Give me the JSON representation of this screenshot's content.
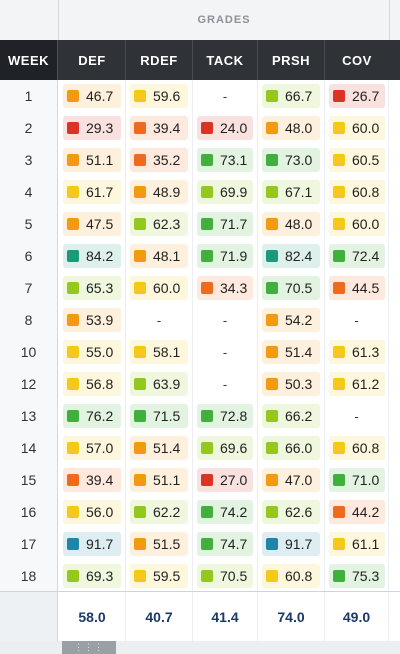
{
  "header": {
    "group_label": "GRADES"
  },
  "columns": {
    "week": "WEEK",
    "def": "DEF",
    "rdef": "RDEF",
    "tack": "TACK",
    "prsh": "PRSH",
    "cov": "COV"
  },
  "colors": {
    "elite_teal": "#1a9a78",
    "elite_blue": "#1e86a8",
    "high_green": "#3fb03b",
    "good_lime": "#94c81f",
    "avg_yellow": "#f4c919",
    "below_orange": "#f39a12",
    "low_orange": "#ef6a1d",
    "poor_red": "#d93425"
  },
  "rows": [
    {
      "week": "1",
      "cells": [
        [
          "46.7",
          "below_orange"
        ],
        [
          "59.6",
          "avg_yellow"
        ],
        [
          "-",
          ""
        ],
        [
          "66.7",
          "good_lime"
        ],
        [
          "26.7",
          "poor_red"
        ]
      ]
    },
    {
      "week": "2",
      "cells": [
        [
          "29.3",
          "poor_red"
        ],
        [
          "39.4",
          "low_orange"
        ],
        [
          "24.0",
          "poor_red"
        ],
        [
          "48.0",
          "below_orange"
        ],
        [
          "60.0",
          "avg_yellow"
        ]
      ]
    },
    {
      "week": "3",
      "cells": [
        [
          "51.1",
          "below_orange"
        ],
        [
          "35.2",
          "low_orange"
        ],
        [
          "73.1",
          "high_green"
        ],
        [
          "73.0",
          "high_green"
        ],
        [
          "60.5",
          "avg_yellow"
        ]
      ]
    },
    {
      "week": "4",
      "cells": [
        [
          "61.7",
          "avg_yellow"
        ],
        [
          "48.9",
          "below_orange"
        ],
        [
          "69.9",
          "good_lime"
        ],
        [
          "67.1",
          "good_lime"
        ],
        [
          "60.8",
          "avg_yellow"
        ]
      ]
    },
    {
      "week": "5",
      "cells": [
        [
          "47.5",
          "below_orange"
        ],
        [
          "62.3",
          "good_lime"
        ],
        [
          "71.7",
          "high_green"
        ],
        [
          "48.0",
          "below_orange"
        ],
        [
          "60.0",
          "avg_yellow"
        ]
      ]
    },
    {
      "week": "6",
      "cells": [
        [
          "84.2",
          "elite_teal"
        ],
        [
          "48.1",
          "below_orange"
        ],
        [
          "71.9",
          "high_green"
        ],
        [
          "82.4",
          "elite_teal"
        ],
        [
          "72.4",
          "high_green"
        ]
      ]
    },
    {
      "week": "7",
      "cells": [
        [
          "65.3",
          "good_lime"
        ],
        [
          "60.0",
          "avg_yellow"
        ],
        [
          "34.3",
          "low_orange"
        ],
        [
          "70.5",
          "high_green"
        ],
        [
          "44.5",
          "low_orange"
        ]
      ]
    },
    {
      "week": "8",
      "cells": [
        [
          "53.9",
          "below_orange"
        ],
        [
          "-",
          ""
        ],
        [
          "-",
          ""
        ],
        [
          "54.2",
          "below_orange"
        ],
        [
          "-",
          ""
        ]
      ]
    },
    {
      "week": "10",
      "cells": [
        [
          "55.0",
          "avg_yellow"
        ],
        [
          "58.1",
          "avg_yellow"
        ],
        [
          "-",
          ""
        ],
        [
          "51.4",
          "below_orange"
        ],
        [
          "61.3",
          "avg_yellow"
        ]
      ]
    },
    {
      "week": "12",
      "cells": [
        [
          "56.8",
          "avg_yellow"
        ],
        [
          "63.9",
          "good_lime"
        ],
        [
          "-",
          ""
        ],
        [
          "50.3",
          "below_orange"
        ],
        [
          "61.2",
          "avg_yellow"
        ]
      ]
    },
    {
      "week": "13",
      "cells": [
        [
          "76.2",
          "high_green"
        ],
        [
          "71.5",
          "high_green"
        ],
        [
          "72.8",
          "high_green"
        ],
        [
          "66.2",
          "good_lime"
        ],
        [
          "-",
          ""
        ]
      ]
    },
    {
      "week": "14",
      "cells": [
        [
          "57.0",
          "avg_yellow"
        ],
        [
          "51.4",
          "below_orange"
        ],
        [
          "69.6",
          "good_lime"
        ],
        [
          "66.0",
          "good_lime"
        ],
        [
          "60.8",
          "avg_yellow"
        ]
      ]
    },
    {
      "week": "15",
      "cells": [
        [
          "39.4",
          "low_orange"
        ],
        [
          "51.1",
          "below_orange"
        ],
        [
          "27.0",
          "poor_red"
        ],
        [
          "47.0",
          "below_orange"
        ],
        [
          "71.0",
          "high_green"
        ]
      ]
    },
    {
      "week": "16",
      "cells": [
        [
          "56.0",
          "avg_yellow"
        ],
        [
          "62.2",
          "good_lime"
        ],
        [
          "74.2",
          "high_green"
        ],
        [
          "62.6",
          "good_lime"
        ],
        [
          "44.2",
          "low_orange"
        ]
      ]
    },
    {
      "week": "17",
      "cells": [
        [
          "91.7",
          "elite_blue"
        ],
        [
          "51.5",
          "below_orange"
        ],
        [
          "74.7",
          "high_green"
        ],
        [
          "91.7",
          "elite_blue"
        ],
        [
          "61.1",
          "avg_yellow"
        ]
      ]
    },
    {
      "week": "18",
      "cells": [
        [
          "69.3",
          "good_lime"
        ],
        [
          "59.5",
          "avg_yellow"
        ],
        [
          "70.5",
          "good_lime"
        ],
        [
          "60.8",
          "avg_yellow"
        ],
        [
          "75.3",
          "high_green"
        ]
      ]
    }
  ],
  "footer": {
    "values": [
      "58.0",
      "40.7",
      "41.4",
      "74.0",
      "49.0"
    ]
  },
  "scrollbar": {
    "grip": "⋮⋮⋮"
  }
}
